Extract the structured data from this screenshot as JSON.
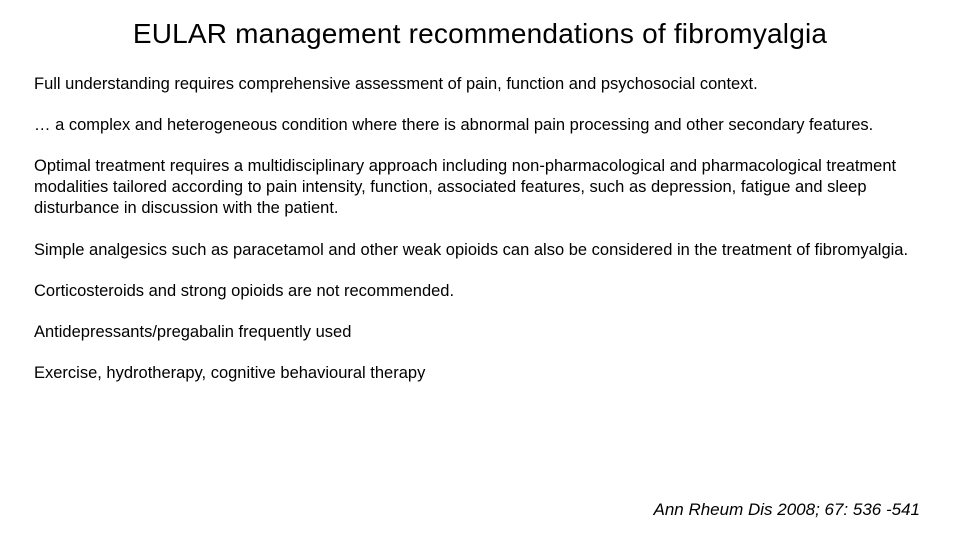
{
  "colors": {
    "background": "#ffffff",
    "text": "#000000",
    "title": "#000000"
  },
  "typography": {
    "font_family": "Comic Sans MS",
    "title_fontsize_pt": 21,
    "body_fontsize_pt": 12.5,
    "citation_fontsize_pt": 13,
    "citation_style": "italic"
  },
  "title": "EULAR management recommendations of fibromyalgia",
  "paragraphs": [
    "Full understanding requires comprehensive assessment of pain, function and psychosocial context.",
    "… a complex and heterogeneous condition where there is abnormal pain processing and other secondary features.",
    "Optimal treatment requires a multidisciplinary approach including non-pharmacological and pharmacological treatment modalities tailored according to pain intensity, function, associated features, such as depression, fatigue and sleep disturbance in discussion with the patient.",
    "Simple analgesics such as paracetamol and other weak opioids can also be considered in the treatment of fibromyalgia.",
    "Corticosteroids and strong opioids are not recommended.",
    "Antidepressants/pregabalin frequently used",
    "Exercise, hydrotherapy, cognitive behavioural therapy"
  ],
  "citation": "Ann Rheum Dis 2008; 67: 536 -541"
}
